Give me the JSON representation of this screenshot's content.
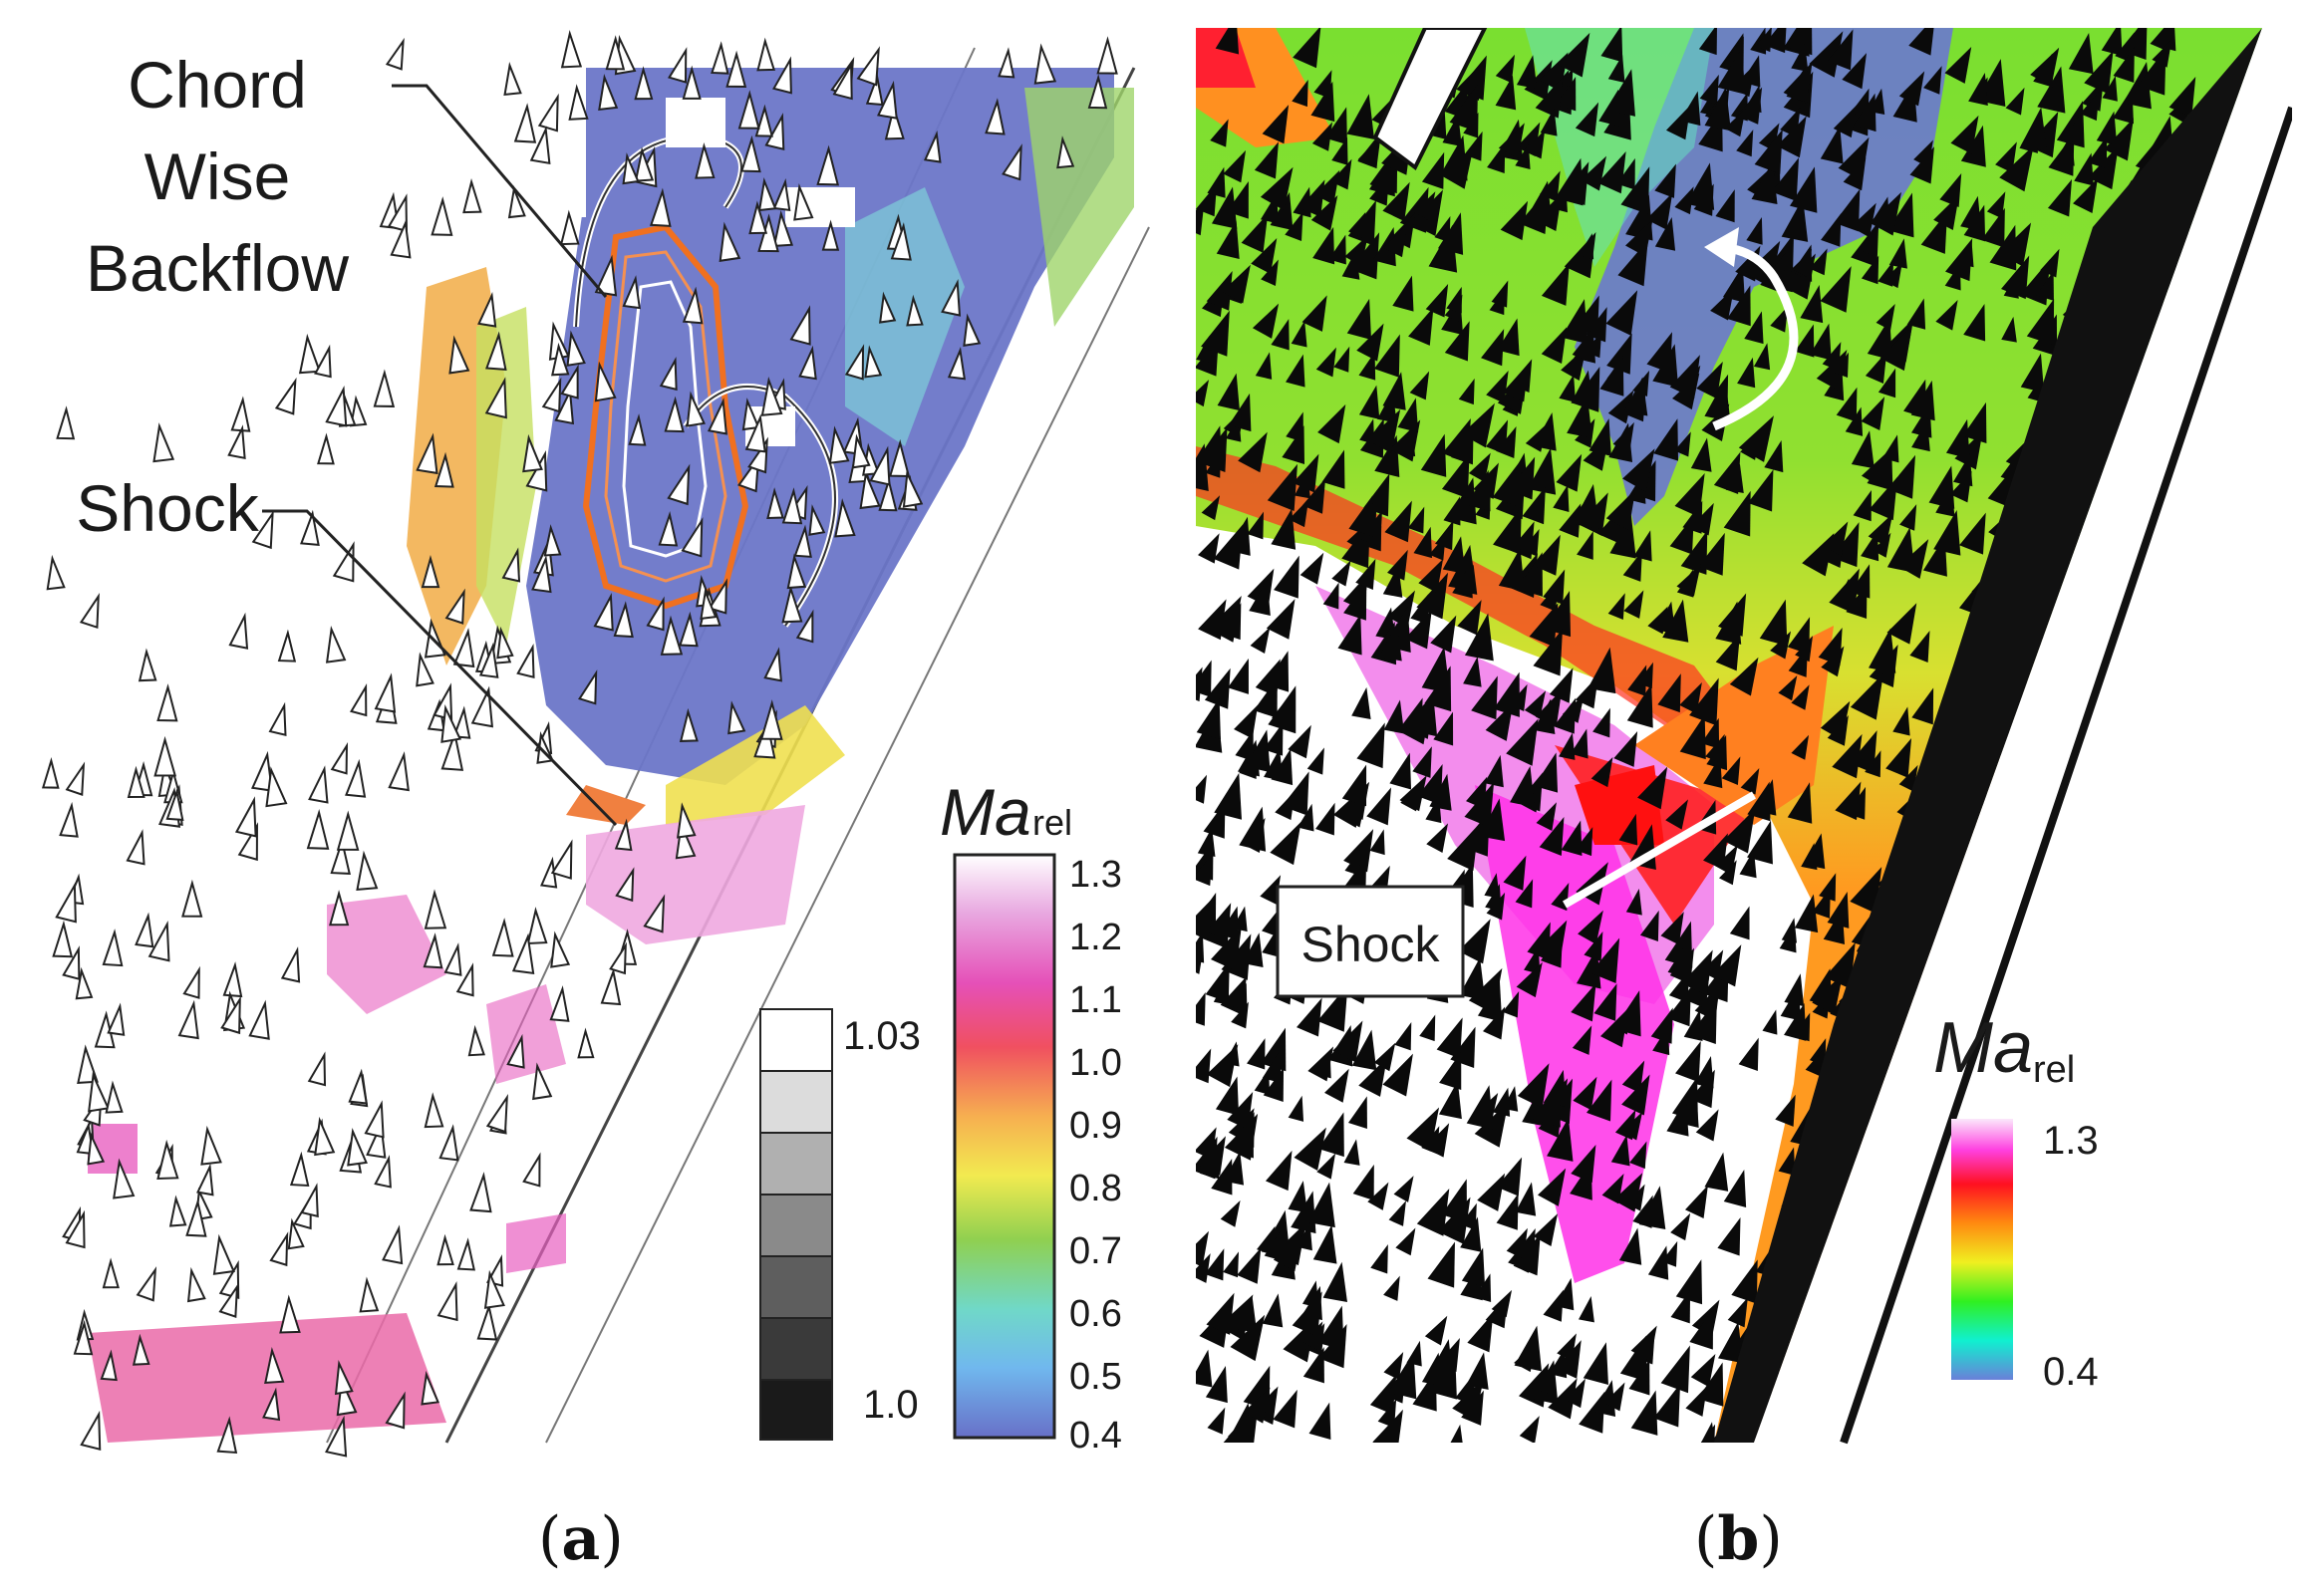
{
  "panel_a": {
    "label_chord_line1": "Chord",
    "label_chord_line2": "Wise",
    "label_chord_line3": "Backflow",
    "label_shock": "Shock",
    "colorbar_title_main": "Ma",
    "colorbar_title_sub": "rel",
    "colorbar_ticks": [
      "1.3",
      "1.2",
      "1.1",
      "1.0",
      "0.9",
      "0.8",
      "0.7",
      "0.6",
      "0.5",
      "0.4"
    ],
    "gray_ticks": [
      "1.03",
      "1.0"
    ],
    "caption_letter": "a"
  },
  "panel_b": {
    "label_shock": "Shock",
    "colorbar_title_main": "Ma",
    "colorbar_title_sub": "rel",
    "colorbar_max": "1.3",
    "colorbar_min": "0.4",
    "caption_letter": "b"
  },
  "colors": {
    "low_blue": "#6f79c9",
    "shock_red": "#ff2a1a",
    "supersonic_pink": "#ee55cc",
    "green": "#44dd22",
    "yellow": "#eedd22"
  }
}
